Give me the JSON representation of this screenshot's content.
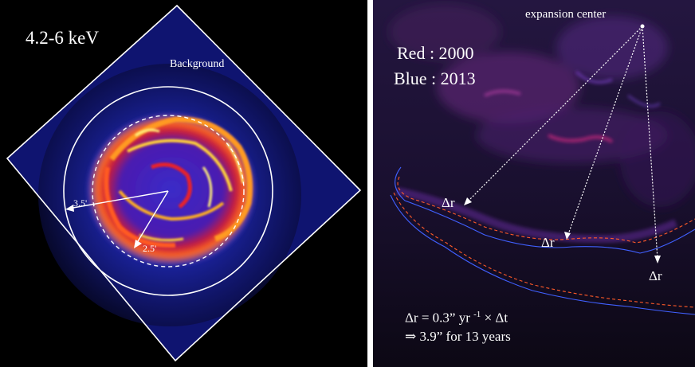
{
  "left_panel": {
    "energy_band": "4.2-6 keV",
    "background_label": "Background",
    "outer_radius_label": "3.5'",
    "inner_radius_label": "2.5'"
  },
  "right_panel": {
    "epoch_red": "Red : 2000",
    "epoch_blue": "Blue : 2013",
    "expansion_center_label": "expansion center",
    "delta_r_labels": [
      "Δr",
      "Δr",
      "Δr"
    ],
    "formula_line1": "Δr = 0.3” yr",
    "formula_exp": "-1",
    "formula_line1_tail": "× Δt",
    "formula_line2": "⇒ 3.9” for 13 years"
  },
  "colors": {
    "panel_background": "#000000",
    "diffuse_blue": "#2a35c8",
    "remnant_hot": "#ffd23a",
    "remnant_warm": "#e8202a",
    "annotation": "#ffffff",
    "contour_red": "#ff5a28",
    "contour_blue": "#4060ff",
    "magenta_emission": "#c8287a"
  }
}
